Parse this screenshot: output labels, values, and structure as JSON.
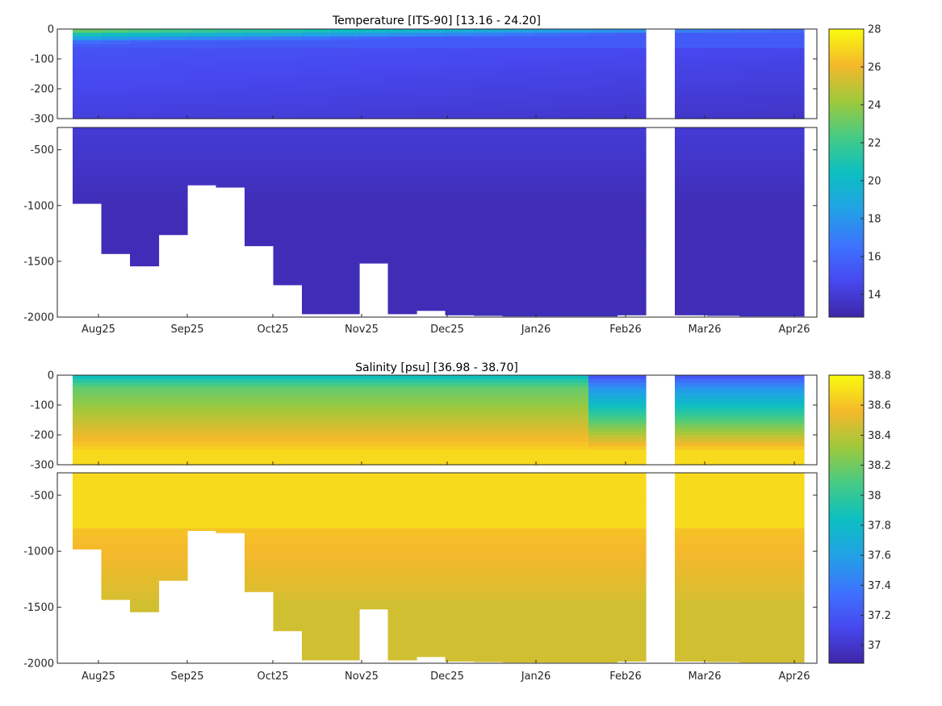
{
  "chart_data": [
    {
      "type": "heatmap",
      "title": "Temperature [ITS-90]   [13.16 - 24.20]",
      "variable": "Temperature",
      "units": "ITS-90",
      "range": [
        13.16,
        24.2
      ],
      "colormap": "parula",
      "x_ticks": [
        "Aug25",
        "Sep25",
        "Oct25",
        "Nov25",
        "Dec25",
        "Jan26",
        "Feb26",
        "Mar26",
        "Apr26"
      ],
      "upper_panel": {
        "ylim": [
          -300,
          0
        ],
        "y_ticks": [
          0,
          -100,
          -200,
          -300
        ]
      },
      "lower_panel": {
        "ylim": [
          -2000,
          -300
        ],
        "y_ticks": [
          -500,
          -1000,
          -1500,
          -2000
        ]
      },
      "colorbar": {
        "clim": [
          12.8,
          28
        ],
        "ticks": [
          14,
          16,
          18,
          20,
          22,
          24,
          26,
          28
        ]
      },
      "profile_max_depth": [
        -980,
        -1430,
        -1540,
        -1260,
        -815,
        -835,
        -1360,
        -1710,
        -1970,
        -1970,
        -1515,
        -1970,
        -1940,
        -1980,
        -1985,
        -1990,
        -1990,
        -1990,
        -1990,
        -1980,
        -1980,
        -1985,
        -1990,
        -1990
      ],
      "gap": "Feb26-Mar26 (no data)",
      "surface_max_month": "Aug25",
      "field_description": "warm surface layer (up to ~24) in Aug-Oct, cooling to ~14-15 below 100 m and ~13.2-13.5 at depth"
    },
    {
      "type": "heatmap",
      "title": "Salinity [psu]   [36.98 - 38.70]",
      "variable": "Salinity",
      "units": "psu",
      "range": [
        36.98,
        38.7
      ],
      "colormap": "parula",
      "x_ticks": [
        "Aug25",
        "Sep25",
        "Oct25",
        "Nov25",
        "Dec25",
        "Jan26",
        "Feb26",
        "Mar26",
        "Apr26"
      ],
      "upper_panel": {
        "ylim": [
          -300,
          0
        ],
        "y_ticks": [
          0,
          -100,
          -200,
          -300
        ]
      },
      "lower_panel": {
        "ylim": [
          -2000,
          -300
        ],
        "y_ticks": [
          -500,
          -1000,
          -1500,
          -2000
        ]
      },
      "colorbar": {
        "clim": [
          36.88,
          38.8
        ],
        "ticks": [
          37,
          37.2,
          37.4,
          37.6,
          37.8,
          38,
          38.2,
          38.4,
          38.6,
          38.8
        ]
      },
      "profile_max_depth": [
        -980,
        -1430,
        -1540,
        -1260,
        -815,
        -835,
        -1360,
        -1710,
        -1970,
        -1970,
        -1515,
        -1970,
        -1940,
        -1980,
        -1985,
        -1990,
        -1990,
        -1990,
        -1990,
        -1980,
        -1980,
        -1985,
        -1990,
        -1990
      ],
      "gap": "Feb26-Mar26 (no data)",
      "field_description": "fresher surface water (~37.6-38.0) in Aug-Dec, strong freshening (~37.0-37.4) from Jan26; ~38.6-38.7 at 200-800 m, ~38.4-38.5 at depth"
    }
  ]
}
